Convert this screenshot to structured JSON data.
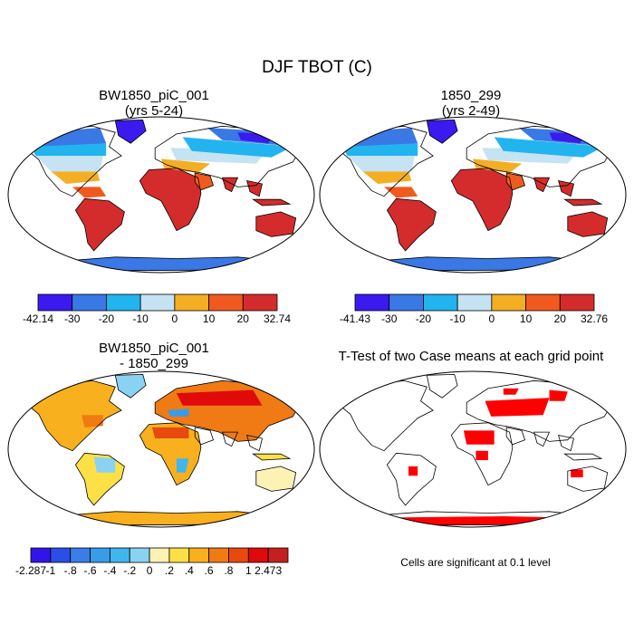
{
  "title": "DJF TBOT (C)",
  "colors": {
    "diff_mask": "#ff0000",
    "coast": "#000000",
    "frame": "#000000"
  },
  "chart_data": [
    {
      "type": "heatmap",
      "projection": "robinson",
      "title": "BW1850_piC_001",
      "subtitle": "(yrs 5-24)",
      "colorbar": {
        "min_label": "-42.14",
        "max_label": "32.74",
        "ticks": [
          "-30",
          "-20",
          "-10",
          "0",
          "10",
          "20"
        ],
        "colors": [
          "#3a1aef",
          "#3a78e6",
          "#22b4ee",
          "#c5e3f2",
          "#f4ae24",
          "#f15a1e",
          "#d42c2c"
        ]
      }
    },
    {
      "type": "heatmap",
      "projection": "robinson",
      "title": "1850_299",
      "subtitle": "(yrs 2-49)",
      "colorbar": {
        "min_label": "-41.43",
        "max_label": "32.76",
        "ticks": [
          "-30",
          "-20",
          "-10",
          "0",
          "10",
          "20"
        ],
        "colors": [
          "#3a1aef",
          "#3a78e6",
          "#22b4ee",
          "#c5e3f2",
          "#f4ae24",
          "#f15a1e",
          "#d42c2c"
        ]
      }
    },
    {
      "type": "heatmap",
      "projection": "robinson",
      "title": "BW1850_piC_001",
      "subtitle": "- 1850_299",
      "colorbar": {
        "min_label": "-2.287",
        "max_label": "2.473",
        "ticks": [
          "-1",
          "-.8",
          "-.6",
          "-.4",
          "-.2",
          "0",
          ".2",
          ".4",
          ".6",
          ".8",
          "1"
        ],
        "colors": [
          "#3214e8",
          "#2a4ee6",
          "#3a7de6",
          "#3a9be8",
          "#40b6ee",
          "#8ad2f2",
          "#fbf2b4",
          "#fce046",
          "#f8b01e",
          "#f07a14",
          "#e84a0e",
          "#e00a0a",
          "#c42020"
        ]
      }
    },
    {
      "type": "heatmap",
      "projection": "robinson",
      "title": "T-Test of two Case means at each grid point",
      "note": "Cells are significant at 0.1 level"
    }
  ]
}
